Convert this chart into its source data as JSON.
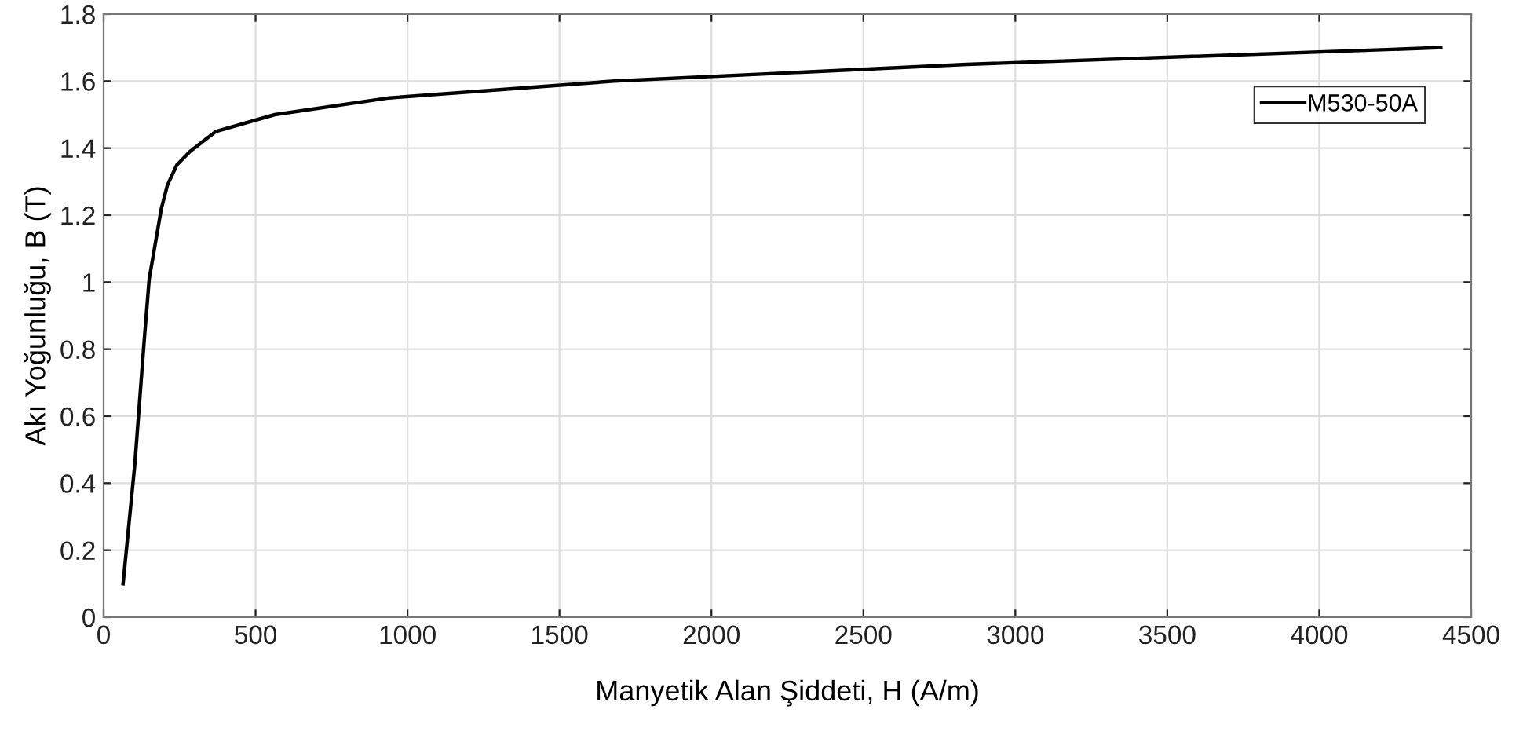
{
  "chart_data": {
    "type": "line",
    "xlabel": "Manyetik Alan Şiddeti, H (A/m)",
    "ylabel": "Akı Yoğunluğu, B (T)",
    "series": [
      {
        "name": "M530-50A",
        "color": "#000000",
        "x": [
          64,
          103,
          133,
          150,
          190,
          210,
          241,
          284,
          370,
          563,
          940,
          1680,
          2840,
          4400
        ],
        "values": [
          0.1,
          0.46,
          0.82,
          1.01,
          1.22,
          1.29,
          1.35,
          1.39,
          1.45,
          1.5,
          1.55,
          1.6,
          1.65,
          1.7
        ]
      }
    ],
    "xlim": [
      0,
      4500
    ],
    "xticks": [
      0,
      500,
      1000,
      1500,
      2000,
      2500,
      3000,
      3500,
      4000,
      4500
    ],
    "ylim": [
      0,
      1.8
    ],
    "yticks": [
      0,
      {
        "value": 0.2,
        "label": "0.2"
      },
      {
        "value": 0.4,
        "label": "0.4"
      },
      {
        "value": 0.6,
        "label": "0.6"
      },
      {
        "value": 0.8,
        "label": "0.8"
      },
      1,
      {
        "value": 1.2,
        "label": "1.2"
      },
      {
        "value": 1.4,
        "label": "1.4"
      },
      {
        "value": 1.6,
        "label": "1.6"
      },
      {
        "value": 1.8,
        "label": "1.8"
      }
    ],
    "grid": true,
    "legend": "top right",
    "marker": "none",
    "line_style": "solid"
  }
}
